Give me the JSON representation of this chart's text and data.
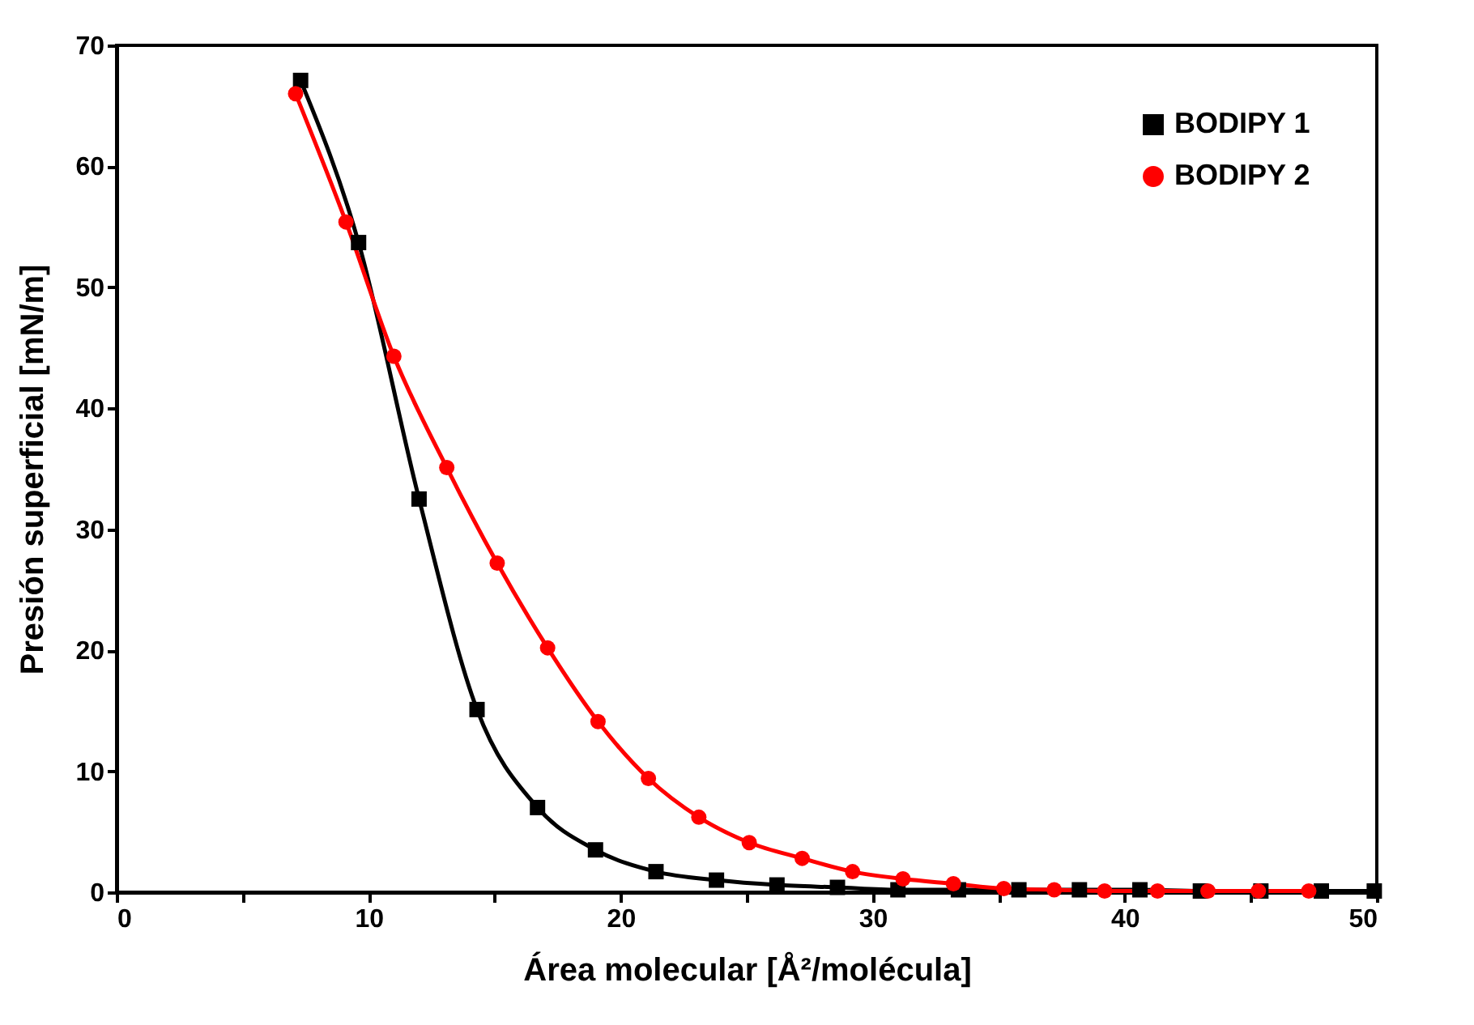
{
  "chart_data": {
    "type": "line",
    "xlabel": "Área molecular [Å²/molécula]",
    "ylabel": "Presión superficial  [mN/m]",
    "xlim": [
      0,
      50
    ],
    "ylim": [
      0,
      70
    ],
    "xticks": [
      0,
      {
        "value": 5,
        "label": null
      },
      10,
      {
        "value": 15,
        "label": null
      },
      20,
      {
        "value": 25,
        "label": null
      },
      30,
      {
        "value": 35,
        "label": null
      },
      40,
      {
        "value": 45,
        "label": null
      },
      50
    ],
    "yticks": [
      0,
      10,
      20,
      30,
      40,
      50,
      60,
      70
    ],
    "legend": "top right",
    "grid": false,
    "series": [
      {
        "name": "BODIPY 1",
        "color": "#000000",
        "marker": "square",
        "x": [
          7.3,
          9.6,
          12.0,
          14.3,
          16.7,
          19.0,
          21.4,
          23.8,
          26.2,
          28.6,
          31.0,
          33.4,
          35.8,
          38.2,
          40.6,
          43.0,
          45.4,
          47.8,
          49.9
        ],
        "values": [
          67.1,
          53.7,
          32.5,
          15.1,
          7.0,
          3.5,
          1.7,
          1.0,
          0.6,
          0.4,
          0.2,
          0.2,
          0.2,
          0.2,
          0.2,
          0.1,
          0.1,
          0.1,
          0.1
        ]
      },
      {
        "name": "BODIPY 2",
        "color": "#ff0000",
        "marker": "circle",
        "x": [
          7.1,
          9.1,
          11.0,
          13.1,
          15.1,
          17.1,
          19.1,
          21.1,
          23.1,
          25.1,
          27.2,
          29.2,
          31.2,
          33.2,
          35.2,
          37.2,
          39.2,
          41.3,
          43.3,
          45.3,
          47.3
        ],
        "values": [
          66.0,
          55.4,
          44.3,
          35.1,
          27.2,
          20.2,
          14.1,
          9.4,
          6.2,
          4.1,
          2.8,
          1.7,
          1.1,
          0.7,
          0.3,
          0.2,
          0.1,
          0.1,
          0.1,
          0.1,
          0.1
        ]
      }
    ]
  }
}
